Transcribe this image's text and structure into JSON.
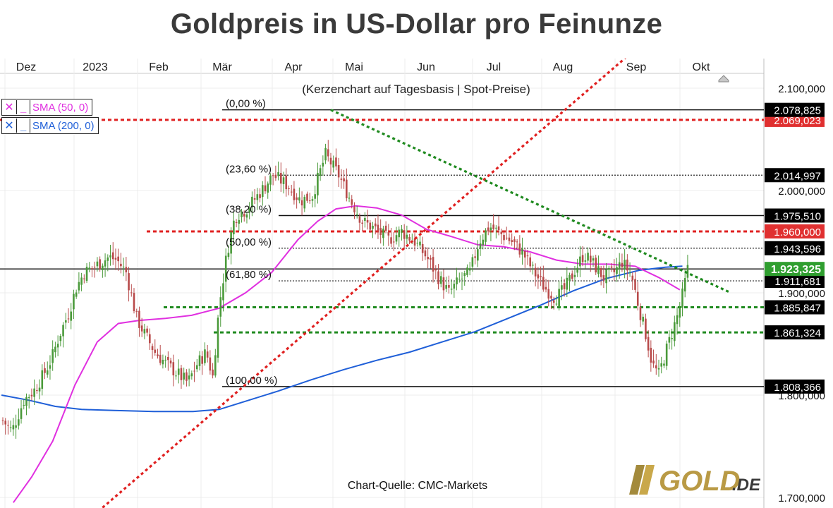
{
  "title": "Goldpreis in US-Dollar pro Feinunze",
  "subtitle": "(Kerzenchart auf Tagesbasis | Spot-Preise)",
  "source_note": "Chart-Quelle: CMC-Markets",
  "logo_text": "GOLD.DE",
  "colors": {
    "bull": "#4a9a3a",
    "bear": "#b84a4a",
    "sma50": "#e030e0",
    "sma200": "#1f5fd8",
    "red_dashed": "#e02020",
    "green_dashed": "#1f8a1f",
    "current_price_bg": "#2f9e2f",
    "red_price_bg": "#e03030"
  },
  "legend": [
    {
      "symbol": "✕",
      "dash": "_",
      "label": "SMA (50, 0)",
      "color": "#e030e0"
    },
    {
      "symbol": "✕",
      "dash": "_",
      "label": "SMA (200, 0)",
      "color": "#1f5fd8"
    }
  ],
  "chart_data": {
    "type": "candlestick",
    "title": "Goldpreis in US-Dollar pro Feinunze",
    "subtitle": "(Kerzenchart auf Tagesbasis | Spot-Preise)",
    "x_month_labels": [
      "Dez",
      "2023",
      "Feb",
      "Mär",
      "Apr",
      "Mai",
      "Jun",
      "Jul",
      "Aug",
      "Sep",
      "Okt"
    ],
    "y_tick_labels": [
      "2.100,000",
      "2.000,000",
      "1.900,000",
      "1.800,000",
      "1.700,000"
    ],
    "y_ticks": [
      2100,
      2000,
      1900,
      1800,
      1700
    ],
    "ylim": [
      1690,
      2140
    ],
    "grid": true,
    "price_path": [
      {
        "t": 0.0,
        "p": 1775
      },
      {
        "t": 0.7,
        "p": 1765
      },
      {
        "t": 1.6,
        "p": 1795
      },
      {
        "t": 2.4,
        "p": 1805
      },
      {
        "t": 3.1,
        "p": 1820
      },
      {
        "t": 3.7,
        "p": 1835
      },
      {
        "t": 4.3,
        "p": 1858
      },
      {
        "t": 5.0,
        "p": 1880
      },
      {
        "t": 5.6,
        "p": 1905
      },
      {
        "t": 6.2,
        "p": 1920
      },
      {
        "t": 6.9,
        "p": 1925
      },
      {
        "t": 7.5,
        "p": 1930
      },
      {
        "t": 8.1,
        "p": 1935
      },
      {
        "t": 8.7,
        "p": 1932
      },
      {
        "t": 9.4,
        "p": 1920
      },
      {
        "t": 10.2,
        "p": 1875
      },
      {
        "t": 10.8,
        "p": 1860
      },
      {
        "t": 11.6,
        "p": 1842
      },
      {
        "t": 12.5,
        "p": 1830
      },
      {
        "t": 13.4,
        "p": 1820
      },
      {
        "t": 14.1,
        "p": 1812
      },
      {
        "t": 14.8,
        "p": 1830
      },
      {
        "t": 15.5,
        "p": 1842
      },
      {
        "t": 16.0,
        "p": 1818
      },
      {
        "t": 16.5,
        "p": 1888
      },
      {
        "t": 17.1,
        "p": 1940
      },
      {
        "t": 17.7,
        "p": 1975
      },
      {
        "t": 18.6,
        "p": 1982
      },
      {
        "t": 19.6,
        "p": 1998
      },
      {
        "t": 20.6,
        "p": 2015
      },
      {
        "t": 21.7,
        "p": 2005
      },
      {
        "t": 22.7,
        "p": 1990
      },
      {
        "t": 23.6,
        "p": 1995
      },
      {
        "t": 24.6,
        "p": 2035
      },
      {
        "t": 25.6,
        "p": 2015
      },
      {
        "t": 26.6,
        "p": 1988
      },
      {
        "t": 27.4,
        "p": 1970
      },
      {
        "t": 28.4,
        "p": 1962
      },
      {
        "t": 29.4,
        "p": 1952
      },
      {
        "t": 30.4,
        "p": 1960
      },
      {
        "t": 31.4,
        "p": 1950
      },
      {
        "t": 32.3,
        "p": 1935
      },
      {
        "t": 33.2,
        "p": 1915
      },
      {
        "t": 34.0,
        "p": 1900
      },
      {
        "t": 34.8,
        "p": 1912
      },
      {
        "t": 35.6,
        "p": 1920
      },
      {
        "t": 36.3,
        "p": 1950
      },
      {
        "t": 37.1,
        "p": 1965
      },
      {
        "t": 37.9,
        "p": 1958
      },
      {
        "t": 38.8,
        "p": 1950
      },
      {
        "t": 39.6,
        "p": 1940
      },
      {
        "t": 40.4,
        "p": 1922
      },
      {
        "t": 41.3,
        "p": 1905
      },
      {
        "t": 42.1,
        "p": 1895
      },
      {
        "t": 42.8,
        "p": 1903
      },
      {
        "t": 43.6,
        "p": 1922
      },
      {
        "t": 44.3,
        "p": 1938
      },
      {
        "t": 45.0,
        "p": 1928
      },
      {
        "t": 45.8,
        "p": 1915
      },
      {
        "t": 46.6,
        "p": 1920
      },
      {
        "t": 47.2,
        "p": 1930
      },
      {
        "t": 47.9,
        "p": 1918
      },
      {
        "t": 48.5,
        "p": 1885
      },
      {
        "t": 49.0,
        "p": 1860
      },
      {
        "t": 49.5,
        "p": 1830
      },
      {
        "t": 50.0,
        "p": 1820
      },
      {
        "t": 50.6,
        "p": 1845
      },
      {
        "t": 51.1,
        "p": 1865
      },
      {
        "t": 51.6,
        "p": 1885
      },
      {
        "t": 52.2,
        "p": 1923
      }
    ],
    "sma50": [
      {
        "t": 0.8,
        "p": 1695
      },
      {
        "t": 2.2,
        "p": 1720
      },
      {
        "t": 3.8,
        "p": 1755
      },
      {
        "t": 5.5,
        "p": 1810
      },
      {
        "t": 7.2,
        "p": 1852
      },
      {
        "t": 8.8,
        "p": 1870
      },
      {
        "t": 10.4,
        "p": 1873
      },
      {
        "t": 12.4,
        "p": 1875
      },
      {
        "t": 14.4,
        "p": 1878
      },
      {
        "t": 16.5,
        "p": 1885
      },
      {
        "t": 18.5,
        "p": 1900
      },
      {
        "t": 20.5,
        "p": 1920
      },
      {
        "t": 22.5,
        "p": 1952
      },
      {
        "t": 24.0,
        "p": 1970
      },
      {
        "t": 25.4,
        "p": 1982
      },
      {
        "t": 26.9,
        "p": 1985
      },
      {
        "t": 28.5,
        "p": 1983
      },
      {
        "t": 30.4,
        "p": 1976
      },
      {
        "t": 32.3,
        "p": 1962
      },
      {
        "t": 34.2,
        "p": 1955
      },
      {
        "t": 36.2,
        "p": 1947
      },
      {
        "t": 38.2,
        "p": 1945
      },
      {
        "t": 40.2,
        "p": 1940
      },
      {
        "t": 42.2,
        "p": 1932
      },
      {
        "t": 44.2,
        "p": 1928
      },
      {
        "t": 46.2,
        "p": 1928
      },
      {
        "t": 48.2,
        "p": 1926
      },
      {
        "t": 50.0,
        "p": 1915
      },
      {
        "t": 51.6,
        "p": 1903
      }
    ],
    "sma200": [
      {
        "t": -0.1,
        "p": 1800
      },
      {
        "t": 2.0,
        "p": 1795
      },
      {
        "t": 4.0,
        "p": 1789
      },
      {
        "t": 6.0,
        "p": 1786
      },
      {
        "t": 8.5,
        "p": 1785
      },
      {
        "t": 11.5,
        "p": 1784
      },
      {
        "t": 14.5,
        "p": 1784
      },
      {
        "t": 16.5,
        "p": 1786
      },
      {
        "t": 18.5,
        "p": 1794
      },
      {
        "t": 21.0,
        "p": 1804
      },
      {
        "t": 23.5,
        "p": 1815
      },
      {
        "t": 26.0,
        "p": 1825
      },
      {
        "t": 28.5,
        "p": 1834
      },
      {
        "t": 31.0,
        "p": 1842
      },
      {
        "t": 33.5,
        "p": 1852
      },
      {
        "t": 36.0,
        "p": 1862
      },
      {
        "t": 38.5,
        "p": 1875
      },
      {
        "t": 41.0,
        "p": 1888
      },
      {
        "t": 43.5,
        "p": 1902
      },
      {
        "t": 46.0,
        "p": 1914
      },
      {
        "t": 48.5,
        "p": 1922
      },
      {
        "t": 50.5,
        "p": 1925
      },
      {
        "t": 51.8,
        "p": 1926
      }
    ],
    "solid_levels": [
      {
        "label": "2.078,825",
        "value": 2078.825,
        "style": "black"
      },
      {
        "label": "1.975,510",
        "value": 1975.51,
        "style": "black"
      },
      {
        "label": "1.923,325",
        "value": 1923.325,
        "style": "current"
      },
      {
        "label": "1.808,366",
        "value": 1808.366,
        "style": "black"
      }
    ],
    "dotted_levels": [
      {
        "label": "2.014,997",
        "value": 2014.997
      },
      {
        "label": "1.943,596",
        "value": 1943.596
      },
      {
        "label": "1.911,681",
        "value": 1911.681
      }
    ],
    "red_levels": [
      {
        "label": "2.069,023",
        "value": 2069.023
      },
      {
        "label": "1.960,000",
        "value": 1960.0
      }
    ],
    "green_levels": [
      {
        "label": "1.885,847",
        "value": 1885.847
      },
      {
        "label": "1.861,324",
        "value": 1861.324
      }
    ],
    "fibonacci": [
      {
        "label": "(0,00 %)",
        "value": 2078.825
      },
      {
        "label": "(23,60 %)",
        "value": 2014.997
      },
      {
        "label": "(38,20 %)",
        "value": 1975.51
      },
      {
        "label": "(50,00 %)",
        "value": 1943.596
      },
      {
        "label": "(61,80 %)",
        "value": 1911.681
      },
      {
        "label": "(100,00 %)",
        "value": 1808.366
      }
    ],
    "trendlines": [
      {
        "kind": "support",
        "color": "#e02020",
        "from": {
          "t": 7.6,
          "p": 1690
        },
        "to": {
          "t": 48.4,
          "p": 2140
        }
      },
      {
        "kind": "resistance",
        "color": "#1f8a1f",
        "from": {
          "t": 25.0,
          "p": 2078.825
        },
        "to": {
          "t": 55.5,
          "p": 1900
        }
      }
    ]
  }
}
